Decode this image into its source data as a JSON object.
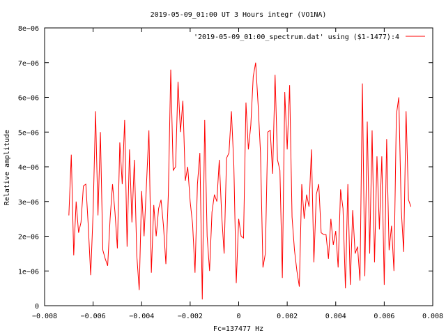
{
  "chart_data": {
    "type": "line",
    "title": "2019-05-09_01:00 UT 3 Hours integr (VO1NA)",
    "xlabel": "Fc=137477 Hz",
    "ylabel": "Relative amplitude",
    "xlim": [
      -0.008,
      0.008
    ],
    "ylim": [
      0,
      8e-06
    ],
    "x_ticks": [
      -0.008,
      -0.006,
      -0.004,
      -0.002,
      0,
      0.002,
      0.004,
      0.006,
      0.008
    ],
    "x_tick_labels": [
      "−0.008",
      "−0.006",
      "−0.004",
      "−0.002",
      "0",
      "0.002",
      "0.004",
      "0.006",
      "0.008"
    ],
    "y_ticks": [
      0,
      1e-06,
      2e-06,
      3e-06,
      4e-06,
      5e-06,
      6e-06,
      7e-06,
      8e-06
    ],
    "y_tick_labels": [
      "0",
      "1e−06",
      "2e−06",
      "3e−06",
      "4e−06",
      "5e−06",
      "6e−06",
      "7e−06",
      "8e−06"
    ],
    "grid": false,
    "legend_position": "top-right",
    "series": [
      {
        "name": "'2019-05-09_01:00_spectrum.dat' using ($1-1477):4",
        "color": "#ff0000",
        "points": [
          [
            -0.007,
            2.6e-06
          ],
          [
            -0.0069,
            4.35e-06
          ],
          [
            -0.0068,
            1.45e-06
          ],
          [
            -0.0067,
            3e-06
          ],
          [
            -0.0066,
            2.1e-06
          ],
          [
            -0.0065,
            2.4e-06
          ],
          [
            -0.0064,
            3.45e-06
          ],
          [
            -0.0063,
            3.5e-06
          ],
          [
            -0.0062,
            2.3e-06
          ],
          [
            -0.0061,
            8.8e-07
          ],
          [
            -0.006,
            2.7e-06
          ],
          [
            -0.0059,
            5.6e-06
          ],
          [
            -0.0058,
            2.6e-06
          ],
          [
            -0.0057,
            5e-06
          ],
          [
            -0.0056,
            1.6e-06
          ],
          [
            -0.0055,
            1.35e-06
          ],
          [
            -0.0054,
            1.15e-06
          ],
          [
            -0.0053,
            2.5e-06
          ],
          [
            -0.0052,
            3.5e-06
          ],
          [
            -0.0051,
            2.7e-06
          ],
          [
            -0.005,
            1.65e-06
          ],
          [
            -0.0049,
            4.7e-06
          ],
          [
            -0.0048,
            3.5e-06
          ],
          [
            -0.0047,
            5.35e-06
          ],
          [
            -0.0046,
            1.7e-06
          ],
          [
            -0.0045,
            4.5e-06
          ],
          [
            -0.0044,
            2.4e-06
          ],
          [
            -0.0043,
            4.2e-06
          ],
          [
            -0.0042,
            1.45e-06
          ],
          [
            -0.0041,
            4.5e-07
          ],
          [
            -0.004,
            3.3e-06
          ],
          [
            -0.0039,
            2e-06
          ],
          [
            -0.0038,
            3.5e-06
          ],
          [
            -0.0037,
            5.05e-06
          ],
          [
            -0.0036,
            9.5e-07
          ],
          [
            -0.0035,
            2.9e-06
          ],
          [
            -0.0034,
            2e-06
          ],
          [
            -0.0033,
            2.8e-06
          ],
          [
            -0.0032,
            3.05e-06
          ],
          [
            -0.0031,
            2.3e-06
          ],
          [
            -0.003,
            1.2e-06
          ],
          [
            -0.0029,
            3.2e-06
          ],
          [
            -0.0028,
            6.8e-06
          ],
          [
            -0.0027,
            3.9e-06
          ],
          [
            -0.0026,
            4e-06
          ],
          [
            -0.0025,
            6.45e-06
          ],
          [
            -0.0024,
            5e-06
          ],
          [
            -0.0023,
            5.9e-06
          ],
          [
            -0.0022,
            3.6e-06
          ],
          [
            -0.0021,
            4e-06
          ],
          [
            -0.002,
            3e-06
          ],
          [
            -0.0019,
            2.35e-06
          ],
          [
            -0.0018,
            9.5e-07
          ],
          [
            -0.0017,
            3.5e-06
          ],
          [
            -0.0016,
            4.4e-06
          ],
          [
            -0.0015,
            1.8e-07
          ],
          [
            -0.0014,
            5.35e-06
          ],
          [
            -0.0013,
            2e-06
          ],
          [
            -0.0012,
            1e-06
          ],
          [
            -0.0011,
            2.7e-06
          ],
          [
            -0.001,
            3.2e-06
          ],
          [
            -0.0009,
            3e-06
          ],
          [
            -0.0008,
            4.2e-06
          ],
          [
            -0.0007,
            2.6e-06
          ],
          [
            -0.0006,
            1.5e-06
          ],
          [
            -0.0005,
            4.25e-06
          ],
          [
            -0.0004,
            4.4e-06
          ],
          [
            -0.0003,
            5.6e-06
          ],
          [
            -0.0002,
            4.05e-06
          ],
          [
            -0.0001,
            6.5e-07
          ],
          [
            0.0,
            2.5e-06
          ],
          [
            0.0001,
            2e-06
          ],
          [
            0.0002,
            1.95e-06
          ],
          [
            0.0003,
            5.85e-06
          ],
          [
            0.0004,
            4.5e-06
          ],
          [
            0.0005,
            5.2e-06
          ],
          [
            0.0006,
            6.6e-06
          ],
          [
            0.0007,
            7e-06
          ],
          [
            0.0008,
            5.8e-06
          ],
          [
            0.0009,
            4.4e-06
          ],
          [
            0.001,
            1.1e-06
          ],
          [
            0.0011,
            1.5e-06
          ],
          [
            0.0012,
            5e-06
          ],
          [
            0.0013,
            5.05e-06
          ],
          [
            0.0014,
            3.8e-06
          ],
          [
            0.0015,
            6.65e-06
          ],
          [
            0.0016,
            4.2e-06
          ],
          [
            0.0017,
            3.9e-06
          ],
          [
            0.0018,
            8e-07
          ],
          [
            0.0019,
            6.15e-06
          ],
          [
            0.002,
            4.5e-06
          ],
          [
            0.0021,
            6.35e-06
          ],
          [
            0.0022,
            2.55e-06
          ],
          [
            0.0023,
            1.6e-06
          ],
          [
            0.0024,
            1e-06
          ],
          [
            0.0025,
            5.5e-07
          ],
          [
            0.0026,
            3.5e-06
          ],
          [
            0.0027,
            2.5e-06
          ],
          [
            0.0028,
            3.2e-06
          ],
          [
            0.0029,
            2.85e-06
          ],
          [
            0.003,
            4.5e-06
          ],
          [
            0.0031,
            1.25e-06
          ],
          [
            0.0032,
            3.2e-06
          ],
          [
            0.0033,
            3.5e-06
          ],
          [
            0.0034,
            2.1e-06
          ],
          [
            0.0035,
            2.05e-06
          ],
          [
            0.0036,
            2.05e-06
          ],
          [
            0.0037,
            1.35e-06
          ],
          [
            0.0038,
            2.5e-06
          ],
          [
            0.0039,
            1.75e-06
          ],
          [
            0.004,
            2.15e-06
          ],
          [
            0.0041,
            1.1e-06
          ],
          [
            0.0042,
            3.35e-06
          ],
          [
            0.0043,
            2.8e-06
          ],
          [
            0.0044,
            5e-07
          ],
          [
            0.0045,
            3.5e-06
          ],
          [
            0.0046,
            6e-07
          ],
          [
            0.0047,
            2.75e-06
          ],
          [
            0.0048,
            1.5e-06
          ],
          [
            0.0049,
            1.7e-06
          ],
          [
            0.005,
            7.2e-07
          ],
          [
            0.0051,
            6.4e-06
          ],
          [
            0.0052,
            8.5e-07
          ],
          [
            0.0053,
            5.3e-06
          ],
          [
            0.0054,
            1.5e-06
          ],
          [
            0.0055,
            5.05e-06
          ],
          [
            0.0056,
            1.25e-06
          ],
          [
            0.0057,
            4.3e-06
          ],
          [
            0.0058,
            2.2e-06
          ],
          [
            0.0059,
            4.3e-06
          ],
          [
            0.006,
            6e-07
          ],
          [
            0.0061,
            4.8e-06
          ],
          [
            0.0062,
            1.6e-06
          ],
          [
            0.0063,
            2.3e-06
          ],
          [
            0.0064,
            1e-06
          ],
          [
            0.0065,
            5.5e-06
          ],
          [
            0.0066,
            6e-06
          ],
          [
            0.0067,
            2.8e-06
          ],
          [
            0.0068,
            1.55e-06
          ],
          [
            0.0069,
            5.6e-06
          ],
          [
            0.007,
            3.05e-06
          ],
          [
            0.0071,
            2.85e-06
          ]
        ]
      }
    ]
  }
}
